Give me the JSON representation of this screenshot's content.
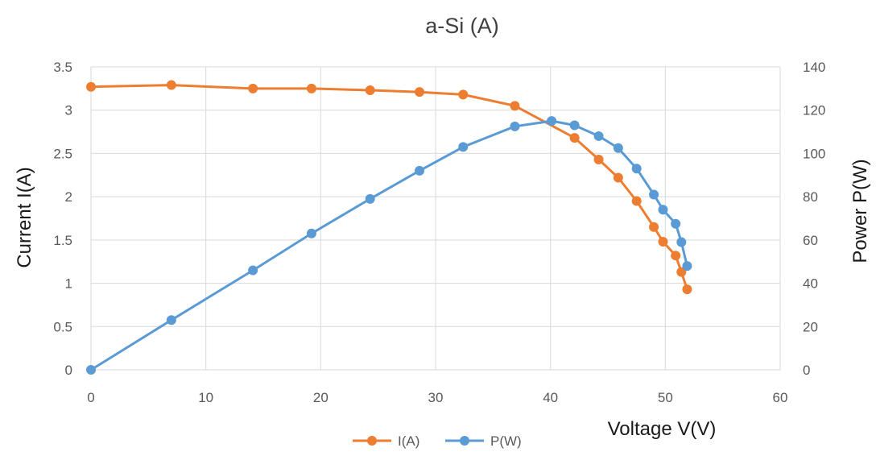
{
  "chart_data": {
    "type": "line",
    "title": "a-Si  (A)",
    "xlabel": "Voltage V(V)",
    "ylabel": "Current I(A)",
    "y2label": "Power P(W)",
    "xlim": [
      0,
      60
    ],
    "ylim": [
      0,
      3.5
    ],
    "y2lim": [
      0,
      140
    ],
    "x_ticks": [
      "0",
      "10",
      "20",
      "30",
      "40",
      "50",
      "60"
    ],
    "y_ticks": [
      "0",
      "0.5",
      "1",
      "1.5",
      "2",
      "2.5",
      "3",
      "3.5"
    ],
    "y2_ticks": [
      "0",
      "20",
      "40",
      "60",
      "80",
      "100",
      "120",
      "140"
    ],
    "grid": true,
    "legend_position": "bottom",
    "series": [
      {
        "name": "I(A)",
        "axis": "left",
        "color": "#ed7d31",
        "x": [
          0,
          7,
          14.1,
          19.2,
          24.3,
          28.6,
          32.4,
          36.9,
          42.1,
          44.2,
          45.9,
          47.5,
          49.0,
          49.8,
          50.9,
          51.4,
          51.9
        ],
        "y": [
          3.27,
          3.29,
          3.25,
          3.25,
          3.23,
          3.21,
          3.18,
          3.05,
          2.68,
          2.43,
          2.22,
          1.95,
          1.65,
          1.48,
          1.32,
          1.13,
          0.93
        ]
      },
      {
        "name": "P(W)",
        "axis": "right",
        "color": "#5b9bd5",
        "x": [
          0,
          7,
          14.1,
          19.2,
          24.3,
          28.6,
          32.4,
          36.9,
          40.1,
          42.1,
          44.2,
          45.9,
          47.5,
          49.0,
          49.8,
          50.9,
          51.4,
          51.9
        ],
        "y": [
          0,
          23,
          46,
          63,
          79,
          92,
          103,
          112.5,
          115,
          113,
          108,
          102.5,
          93,
          81,
          74,
          67.5,
          59,
          48
        ]
      }
    ]
  }
}
